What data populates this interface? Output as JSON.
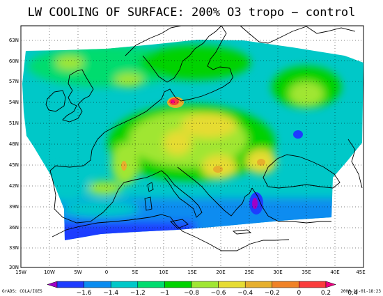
{
  "title": "LW COOLING OF SURFACE: 200% O3 tropo − control",
  "lat_labels": [
    "63N",
    "60N",
    "57N",
    "54N",
    "51N",
    "48N",
    "45N",
    "42N",
    "39N",
    "36N",
    "33N",
    "30N"
  ],
  "lon_labels": [
    "15W",
    "10W",
    "5W",
    "0",
    "5E",
    "10E",
    "15E",
    "20E",
    "25E",
    "30E",
    "35E",
    "40E",
    "45E"
  ],
  "colorbar": {
    "labels": [
      "−1.6",
      "−1.4",
      "−1.2",
      "−1",
      "−0.8",
      "−0.6",
      "−0.4",
      "−0.2",
      "0",
      "0.2",
      "0.4"
    ],
    "colors": [
      "#a000c8",
      "#1e3cff",
      "#0a8cf0",
      "#00c8c8",
      "#00dc6e",
      "#00d200",
      "#a0e632",
      "#e6dc32",
      "#e6af2d",
      "#f08228",
      "#fa3c3c",
      "#f00082"
    ]
  },
  "footer_left": "GrADS: COLA/IGES",
  "footer_right": "2000-11-01-18:23",
  "chart_data": {
    "type": "heatmap",
    "title": "LW COOLING OF SURFACE: 200% O3 tropo − control",
    "x_axis": {
      "range": [
        -15,
        45
      ],
      "ticks": [
        "15W",
        "10W",
        "5W",
        "0",
        "5E",
        "10E",
        "15E",
        "20E",
        "25E",
        "30E",
        "35E",
        "40E",
        "45E"
      ]
    },
    "y_axis": {
      "range": [
        30,
        65
      ],
      "ticks": [
        "30N",
        "33N",
        "36N",
        "39N",
        "42N",
        "45N",
        "48N",
        "51N",
        "54N",
        "57N",
        "60N",
        "63N"
      ]
    },
    "levels": [
      -1.6,
      -1.4,
      -1.2,
      -1,
      -0.8,
      -0.6,
      -0.4,
      -0.2,
      0,
      0.2,
      0.4
    ],
    "grid": true,
    "features": [
      {
        "label": "maximum over northern Germany",
        "lon": 12,
        "lat": 54.5,
        "value": 0.3
      },
      {
        "label": "local maximum over Balkans",
        "lon": 18,
        "lat": 44.5,
        "value": -0.2
      },
      {
        "label": "local maximum over Romania",
        "lon": 27,
        "lat": 45.5,
        "value": -0.2
      },
      {
        "label": "minimum over Aegean",
        "lon": 27,
        "lat": 38.5,
        "value": -1.6
      },
      {
        "label": "minimum over Ukraine",
        "lon": 34,
        "lat": 49.5,
        "value": -1.4
      }
    ]
  }
}
